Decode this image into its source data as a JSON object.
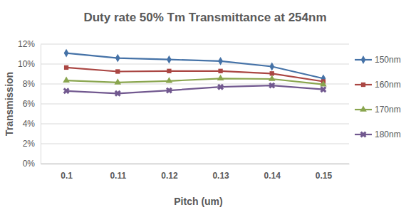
{
  "chart_data": {
    "type": "line",
    "title": "Duty rate 50% Tm Transmittance at 254nm",
    "x_label": "Pitch (um)",
    "y_label": "Transmission",
    "categories": [
      "0.1",
      "0.11",
      "0.12",
      "0.13",
      "0.14",
      "0.15"
    ],
    "series": [
      {
        "name": "150nm",
        "color": "#4572a7",
        "marker": "diamond",
        "values": [
          11.1,
          10.6,
          10.45,
          10.3,
          9.75,
          8.55
        ]
      },
      {
        "name": "160nm",
        "color": "#aa4643",
        "marker": "square",
        "values": [
          9.65,
          9.25,
          9.3,
          9.3,
          9.05,
          8.25
        ]
      },
      {
        "name": "170nm",
        "color": "#89a54e",
        "marker": "triangle",
        "values": [
          8.35,
          8.15,
          8.3,
          8.55,
          8.5,
          7.95
        ]
      },
      {
        "name": "180nm",
        "color": "#71588f",
        "marker": "x",
        "values": [
          7.3,
          7.05,
          7.35,
          7.7,
          7.85,
          7.45
        ]
      }
    ],
    "ylim": [
      0,
      12
    ],
    "yticks": [
      {
        "value": 0,
        "label": "0%"
      },
      {
        "value": 2,
        "label": "2%"
      },
      {
        "value": 4,
        "label": "4%"
      },
      {
        "value": 6,
        "label": "6%"
      },
      {
        "value": 8,
        "label": "8%"
      },
      {
        "value": 10,
        "label": "10%"
      },
      {
        "value": 12,
        "label": "12%"
      }
    ],
    "grid": true,
    "legend": "right"
  }
}
